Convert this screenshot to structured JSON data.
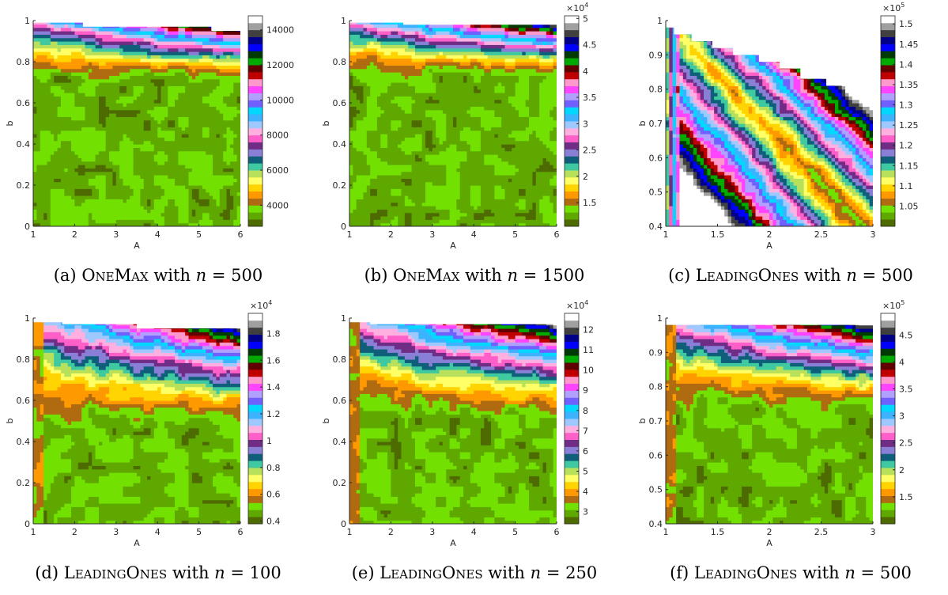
{
  "figures": [
    {
      "id": "a",
      "tag": "(a)",
      "problem": "OneMax",
      "with": "with",
      "var": "n",
      "eq": "=",
      "n": "500"
    },
    {
      "id": "b",
      "tag": "(b)",
      "problem": "OneMax",
      "with": "with",
      "var": "n",
      "eq": "=",
      "n": "1500"
    },
    {
      "id": "c",
      "tag": "(c)",
      "problem": "LeadingOnes",
      "with": "with",
      "var": "n",
      "eq": "=",
      "n": "500"
    },
    {
      "id": "d",
      "tag": "(d)",
      "problem": "LeadingOnes",
      "with": "with",
      "var": "n",
      "eq": "=",
      "n": "100"
    },
    {
      "id": "e",
      "tag": "(e)",
      "problem": "LeadingOnes",
      "with": "with",
      "var": "n",
      "eq": "=",
      "n": "250"
    },
    {
      "id": "f",
      "tag": "(f)",
      "problem": "LeadingOnes",
      "with": "with",
      "var": "n",
      "eq": "=",
      "n": "500"
    }
  ],
  "chart_data": [
    {
      "type": "heatmap",
      "xlabel": "A",
      "ylabel": "b",
      "xlim": [
        1,
        6
      ],
      "ylim": [
        0,
        1
      ],
      "xticks": [
        "1",
        "2",
        "3",
        "4",
        "5",
        "6"
      ],
      "yticks": [
        "0",
        "0.2",
        "0.4",
        "0.6",
        "0.8",
        "1"
      ],
      "colorbar_ticks": [
        "4000",
        "6000",
        "8000",
        "10000",
        "12000",
        "14000"
      ],
      "colorbar_ticks_values": [
        4000,
        6000,
        8000,
        10000,
        12000,
        14000
      ],
      "colorbar_range": [
        2800,
        14800
      ],
      "colorbar_exponent": "",
      "plateau_b": 0.7,
      "stairs": [
        [
          2.2,
          0.99
        ],
        [
          5.3,
          0.97
        ],
        [
          6,
          0.95
        ]
      ]
    },
    {
      "type": "heatmap",
      "xlabel": "A",
      "ylabel": "b",
      "xlim": [
        1,
        6
      ],
      "ylim": [
        0,
        1
      ],
      "xticks": [
        "1",
        "2",
        "3",
        "4",
        "5",
        "6"
      ],
      "yticks": [
        "0",
        "0.2",
        "0.4",
        "0.6",
        "0.8",
        "1"
      ],
      "colorbar_ticks": [
        "1.5",
        "2",
        "2.5",
        "3",
        "3.5",
        "4",
        "4.5",
        "5"
      ],
      "colorbar_ticks_values": [
        1.5,
        2,
        2.5,
        3,
        3.5,
        4,
        4.5,
        5
      ],
      "colorbar_range": [
        1.05,
        5.05
      ],
      "colorbar_exponent": "4",
      "plateau_b": 0.72,
      "stairs": [
        [
          2.3,
          0.99
        ],
        [
          6,
          0.98
        ]
      ]
    },
    {
      "type": "heatmap",
      "xlabel": "A",
      "ylabel": "b",
      "xlim": [
        1,
        3
      ],
      "ylim": [
        0.4,
        1
      ],
      "xticks": [
        "1",
        "1.5",
        "2",
        "2.5",
        "3"
      ],
      "yticks": [
        "0.4",
        "0.5",
        "0.6",
        "0.7",
        "0.8",
        "0.9",
        "1"
      ],
      "colorbar_ticks": [
        "1.05",
        "1.1",
        "1.15",
        "1.2",
        "1.25",
        "1.3",
        "1.35",
        "1.4",
        "1.45",
        "1.5"
      ],
      "colorbar_ticks_values": [
        1.05,
        1.1,
        1.15,
        1.2,
        1.25,
        1.3,
        1.35,
        1.4,
        1.45,
        1.5
      ],
      "colorbar_range": [
        1.0,
        1.52
      ],
      "colorbar_exponent": "5",
      "plateau_b": 0.0,
      "stairs": [
        [
          1.08,
          0.98
        ],
        [
          1.25,
          0.96
        ],
        [
          1.45,
          0.94
        ],
        [
          1.65,
          0.92
        ],
        [
          1.9,
          0.9
        ],
        [
          2.1,
          0.88
        ],
        [
          2.3,
          0.86
        ],
        [
          2.55,
          0.83
        ],
        [
          2.8,
          0.81
        ],
        [
          3,
          0.8
        ]
      ]
    },
    {
      "type": "heatmap",
      "xlabel": "A",
      "ylabel": "b",
      "xlim": [
        1,
        6
      ],
      "ylim": [
        0,
        1
      ],
      "xticks": [
        "1",
        "2",
        "3",
        "4",
        "5",
        "6"
      ],
      "yticks": [
        "0",
        "0.2",
        "0.4",
        "0.6",
        "0.8",
        "1"
      ],
      "colorbar_ticks": [
        "0.4",
        "0.6",
        "0.8",
        "1",
        "1.2",
        "1.4",
        "1.6",
        "1.8"
      ],
      "colorbar_ticks_values": [
        0.4,
        0.6,
        0.8,
        1,
        1.2,
        1.4,
        1.6,
        1.8
      ],
      "colorbar_range": [
        0.38,
        1.95
      ],
      "colorbar_exponent": "4",
      "plateau_b": 0.45,
      "stairs": [
        [
          1.7,
          0.98
        ],
        [
          3.5,
          0.97
        ],
        [
          6,
          0.95
        ]
      ]
    },
    {
      "type": "heatmap",
      "xlabel": "A",
      "ylabel": "b",
      "xlim": [
        1,
        6
      ],
      "ylim": [
        0,
        1
      ],
      "xticks": [
        "1",
        "2",
        "3",
        "4",
        "5",
        "6"
      ],
      "yticks": [
        "0",
        "0.2",
        "0.4",
        "0.6",
        "0.8",
        "1"
      ],
      "colorbar_ticks": [
        "3",
        "4",
        "5",
        "6",
        "7",
        "8",
        "9",
        "10",
        "11",
        "12"
      ],
      "colorbar_ticks_values": [
        3,
        4,
        5,
        6,
        7,
        8,
        9,
        10,
        11,
        12
      ],
      "colorbar_range": [
        2.4,
        12.8
      ],
      "colorbar_exponent": "4",
      "plateau_b": 0.5,
      "stairs": [
        [
          1.5,
          0.98
        ],
        [
          6,
          0.97
        ]
      ]
    },
    {
      "type": "heatmap",
      "xlabel": "A",
      "ylabel": "b",
      "xlim": [
        1,
        3
      ],
      "ylim": [
        0.4,
        1
      ],
      "xticks": [
        "1",
        "1.5",
        "2",
        "2.5",
        "3"
      ],
      "yticks": [
        "0.4",
        "0.5",
        "0.6",
        "0.7",
        "0.8",
        "0.9",
        "1"
      ],
      "colorbar_ticks": [
        "1.5",
        "2",
        "2.5",
        "3",
        "3.5",
        "4",
        "4.5"
      ],
      "colorbar_ticks_values": [
        1.5,
        2,
        2.5,
        3,
        3.5,
        4,
        4.5
      ],
      "colorbar_range": [
        1.0,
        4.9
      ],
      "colorbar_exponent": "5",
      "plateau_b": 0.72,
      "stairs": [
        [
          3,
          0.98
        ]
      ]
    }
  ]
}
